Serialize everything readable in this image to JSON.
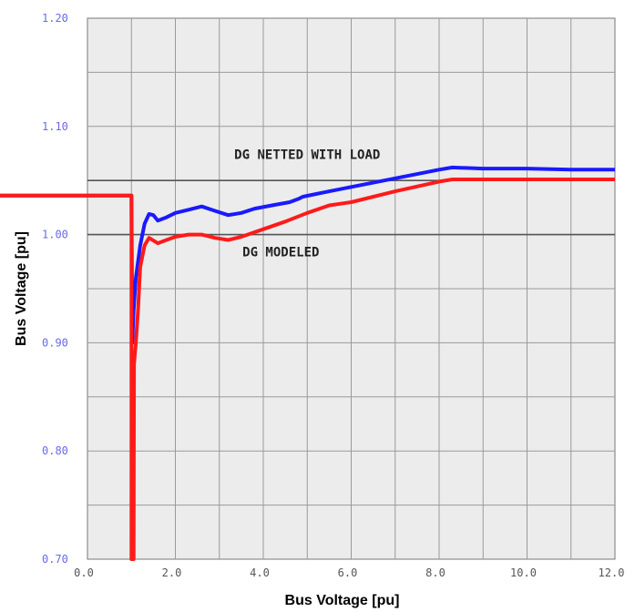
{
  "chart_data": {
    "type": "line",
    "xlabel": "Bus Voltage [pu]",
    "ylabel": "Bus Voltage [pu]",
    "xlim": [
      0,
      12
    ],
    "ylim": [
      0.7,
      1.2
    ],
    "x_ticks": [
      "0.0",
      "2.0",
      "4.0",
      "6.0",
      "8.0",
      "10.0",
      "12.0"
    ],
    "y_ticks": [
      "0.70",
      "0.80",
      "0.90",
      "1.00",
      "1.10",
      "1.20"
    ],
    "grid": true,
    "background": "#ececec",
    "reference_lines": [
      1.05,
      1.0
    ],
    "annotations": [
      {
        "text": "DG NETTED WITH LOAD",
        "x": 5.0,
        "y": 1.07
      },
      {
        "text": "DG MODELED",
        "x": 4.4,
        "y": 0.98
      }
    ],
    "series": [
      {
        "color": "#1a1aff",
        "x": [
          0.0,
          1.0,
          1.02,
          1.05,
          1.1,
          1.2,
          1.3,
          1.4,
          1.5,
          1.6,
          1.8,
          2.0,
          2.3,
          2.6,
          2.9,
          3.2,
          3.5,
          3.8,
          4.2,
          4.6,
          4.8,
          4.9,
          5.5,
          6.0,
          7.0,
          8.0,
          8.3,
          9.0,
          10.0,
          11.0,
          12.0
        ],
        "y": [
          1.036,
          1.036,
          0.9,
          0.93,
          0.96,
          0.99,
          1.01,
          1.019,
          1.018,
          1.013,
          1.016,
          1.02,
          1.023,
          1.026,
          1.022,
          1.018,
          1.02,
          1.024,
          1.027,
          1.03,
          1.033,
          1.035,
          1.04,
          1.044,
          1.052,
          1.06,
          1.062,
          1.061,
          1.061,
          1.06,
          1.06
        ]
      },
      {
        "color": "#ff1a1a",
        "x": [
          0.0,
          1.0,
          1.0,
          1.05,
          1.06,
          1.1,
          1.15,
          1.2,
          1.3,
          1.4,
          1.6,
          1.8,
          2.0,
          2.3,
          2.6,
          2.9,
          3.2,
          3.5,
          4.0,
          4.5,
          5.0,
          5.5,
          6.0,
          7.0,
          8.0,
          8.3,
          9.0,
          10.0,
          11.0,
          12.0
        ],
        "y": [
          1.036,
          1.036,
          0.7,
          0.7,
          0.88,
          0.9,
          0.93,
          0.97,
          0.99,
          0.997,
          0.992,
          0.995,
          0.998,
          1.0,
          1.0,
          0.997,
          0.995,
          0.998,
          1.005,
          1.012,
          1.02,
          1.027,
          1.03,
          1.04,
          1.049,
          1.051,
          1.051,
          1.051,
          1.051,
          1.051
        ]
      }
    ]
  }
}
